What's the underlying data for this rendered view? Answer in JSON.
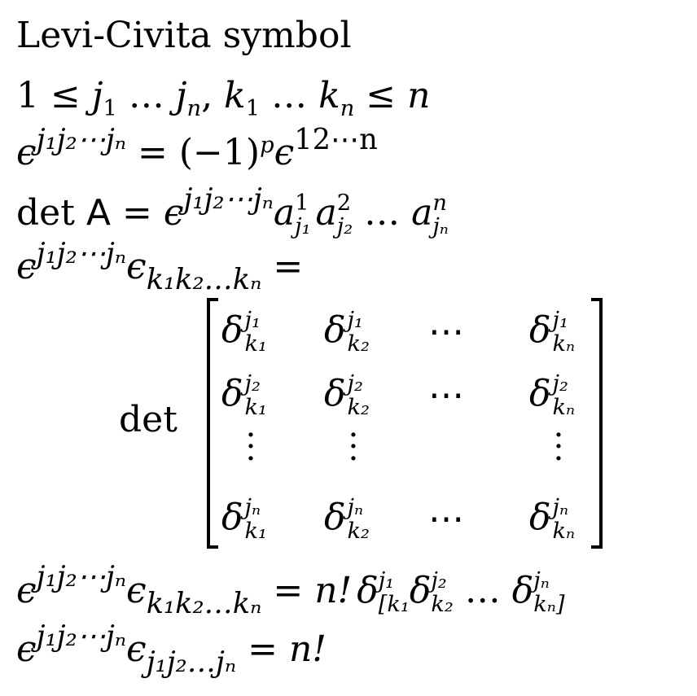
{
  "title": "Levi-Civita symbol",
  "range_line": {
    "start": "1 ≤ ",
    "j1": "j",
    "j1_sub": "1",
    "dots1": " … ",
    "jn": "j",
    "jn_sub": "n",
    "comma": ", ",
    "k1": "k",
    "k1_sub": "1",
    "dots2": " … ",
    "kn": "k",
    "kn_sub": "n",
    "end_op": " ≤ ",
    "end_var": "n"
  },
  "perm_line": {
    "eps": "ϵ",
    "eps_sup": "j₁j₂⋯jₙ",
    "eq": " = (−1)",
    "p": "p",
    "eps2": "ϵ",
    "eps2_sup": "12⋯n"
  },
  "det_line": {
    "det": "det ",
    "A": "A",
    "eq": " = ",
    "eps": "ϵ",
    "eps_sup": "j₁j₂⋯jₙ",
    "a": "a",
    "a1_sup": "1",
    "a1_sub": "j₁",
    "a2_sup": "2",
    "a2_sub": "j₂",
    "dots": " … ",
    "an_sup": "n",
    "an_sub": "jₙ"
  },
  "contract_line": {
    "eps": "ϵ",
    "eps_sup": "j₁j₂⋯jₙ",
    "eps_low": "ϵ",
    "eps_low_sub": "k₁k₂…kₙ",
    "eq": " ="
  },
  "matrix": {
    "det": "det",
    "delta": "δ",
    "hdots": "⋯",
    "vdots": "·\n·\n·",
    "rows": [
      [
        {
          "sup": "j₁",
          "sub": "k₁"
        },
        {
          "sup": "j₁",
          "sub": "k₂"
        },
        {
          "sup": "j₁",
          "sub": "kₙ"
        }
      ],
      [
        {
          "sup": "j₂",
          "sub": "k₁"
        },
        {
          "sup": "j₂",
          "sub": "k₂"
        },
        {
          "sup": "j₂",
          "sub": "kₙ"
        }
      ],
      [
        {
          "sup": "jₙ",
          "sub": "k₁"
        },
        {
          "sup": "jₙ",
          "sub": "k₂"
        },
        {
          "sup": "jₙ",
          "sub": "kₙ"
        }
      ]
    ]
  },
  "antisym_line": {
    "eps": "ϵ",
    "eps_sup": "j₁j₂⋯jₙ",
    "eps_low": "ϵ",
    "eps_low_sub": "k₁k₂…kₙ",
    "eq": " = ",
    "nfact": "n!",
    "delta": "δ",
    "d1_sup": "j₁",
    "d1_sub": "[k₁",
    "d2_sup": "j₂",
    "d2_sub": "k₂",
    "dots": " … ",
    "dn_sup": "jₙ",
    "dn_sub": "kₙ]"
  },
  "full_line": {
    "eps": "ϵ",
    "eps_sup": "j₁j₂⋯jₙ",
    "eps_low": "ϵ",
    "eps_low_sub": "j₁j₂…jₙ",
    "eq": " = ",
    "nfact": "n!"
  }
}
